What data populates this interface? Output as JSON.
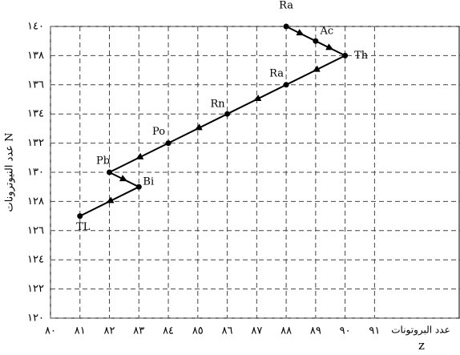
{
  "chart_data": {
    "type": "line",
    "x_label": "z",
    "x_label_extra": "عدد البروتونات",
    "y_label": "عدد النيوترونات N",
    "x": [
      88,
      89,
      90,
      88,
      86,
      84,
      82,
      83,
      81
    ],
    "series": [
      {
        "values": [
          140,
          139,
          138,
          136,
          134,
          132,
          130,
          129,
          127
        ],
        "color": "#000000",
        "point_labels": [
          "Ra",
          "Ac",
          "Th",
          "Ra",
          "Rn",
          "Po",
          "Pb",
          "Bi",
          "TL"
        ]
      }
    ],
    "xlim": [
      80,
      93.9
    ],
    "ylim": [
      120,
      140
    ],
    "xticks": [
      {
        "value": 80,
        "label": "٨٠"
      },
      {
        "value": 81,
        "label": "٨١"
      },
      {
        "value": 82,
        "label": "٨٢"
      },
      {
        "value": 83,
        "label": "٨٣"
      },
      {
        "value": 84,
        "label": "٨٤"
      },
      {
        "value": 85,
        "label": "٨٥"
      },
      {
        "value": 86,
        "label": "٨٦"
      },
      {
        "value": 87,
        "label": "٨٧"
      },
      {
        "value": 88,
        "label": "٨٨"
      },
      {
        "value": 89,
        "label": "٨٩"
      },
      {
        "value": 90,
        "label": "٩٠"
      },
      {
        "value": 91,
        "label": "٩١"
      }
    ],
    "yticks": [
      {
        "value": 120,
        "label": "١٢٠"
      },
      {
        "value": 122,
        "label": "١٢٢"
      },
      {
        "value": 124,
        "label": "١٢٤"
      },
      {
        "value": 126,
        "label": "١٢٦"
      },
      {
        "value": 128,
        "label": "١٢٨"
      },
      {
        "value": 130,
        "label": "١٣٠"
      },
      {
        "value": 132,
        "label": "١٣٢"
      },
      {
        "value": 134,
        "label": "١٣٤"
      },
      {
        "value": 136,
        "label": "١٣٦"
      },
      {
        "value": 138,
        "label": "١٣٨"
      },
      {
        "value": 140,
        "label": "١٤٠"
      }
    ],
    "grid": true
  }
}
